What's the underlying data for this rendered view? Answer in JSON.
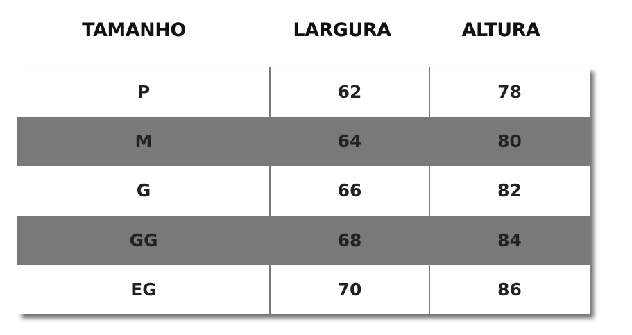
{
  "table": {
    "headers": [
      "TAMANHO",
      "LARGURA",
      "ALTURA"
    ],
    "rows": [
      [
        "P",
        62,
        78
      ],
      [
        "M",
        64,
        80
      ],
      [
        "G",
        66,
        82
      ],
      [
        "GG",
        68,
        84
      ],
      [
        "EG",
        70,
        86
      ]
    ]
  }
}
